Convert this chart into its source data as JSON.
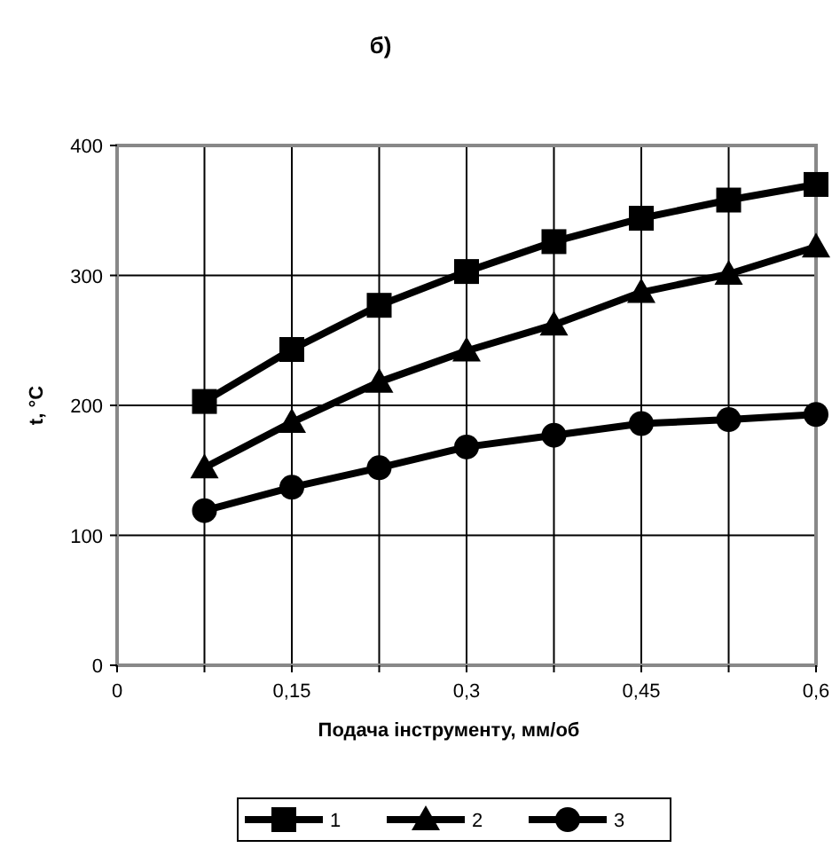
{
  "chart_data": {
    "type": "line",
    "title": "б)",
    "xlabel": "Подача інструменту, мм/об",
    "ylabel": "t, °C",
    "x": [
      0.075,
      0.15,
      0.225,
      0.3,
      0.375,
      0.45,
      0.525,
      0.6
    ],
    "series": [
      {
        "name": "1",
        "color": "#000000",
        "marker": "square",
        "values": [
          203,
          243,
          277,
          303,
          326,
          344,
          358,
          370
        ]
      },
      {
        "name": "2",
        "color": "#000000",
        "marker": "triangle",
        "values": [
          152,
          187,
          218,
          242,
          262,
          287,
          301,
          322
        ]
      },
      {
        "name": "3",
        "color": "#000000",
        "marker": "circle",
        "values": [
          119,
          137,
          152,
          168,
          177,
          186,
          189,
          193
        ]
      }
    ],
    "xlim": [
      0,
      0.6
    ],
    "xticks": [
      0,
      {
        "value": 0.075,
        "label": null
      },
      {
        "value": 0.15,
        "label": "0,15"
      },
      {
        "value": 0.225,
        "label": null
      },
      {
        "value": 0.3,
        "label": "0,3"
      },
      {
        "value": 0.375,
        "label": null
      },
      {
        "value": 0.45,
        "label": "0,45"
      },
      {
        "value": 0.525,
        "label": null
      },
      {
        "value": 0.6,
        "label": "0,6"
      }
    ],
    "ylim": [
      0,
      400
    ],
    "yticks": [
      0,
      100,
      200,
      300,
      400
    ],
    "grid": true,
    "legend": "bottom",
    "line_style": "solid"
  }
}
